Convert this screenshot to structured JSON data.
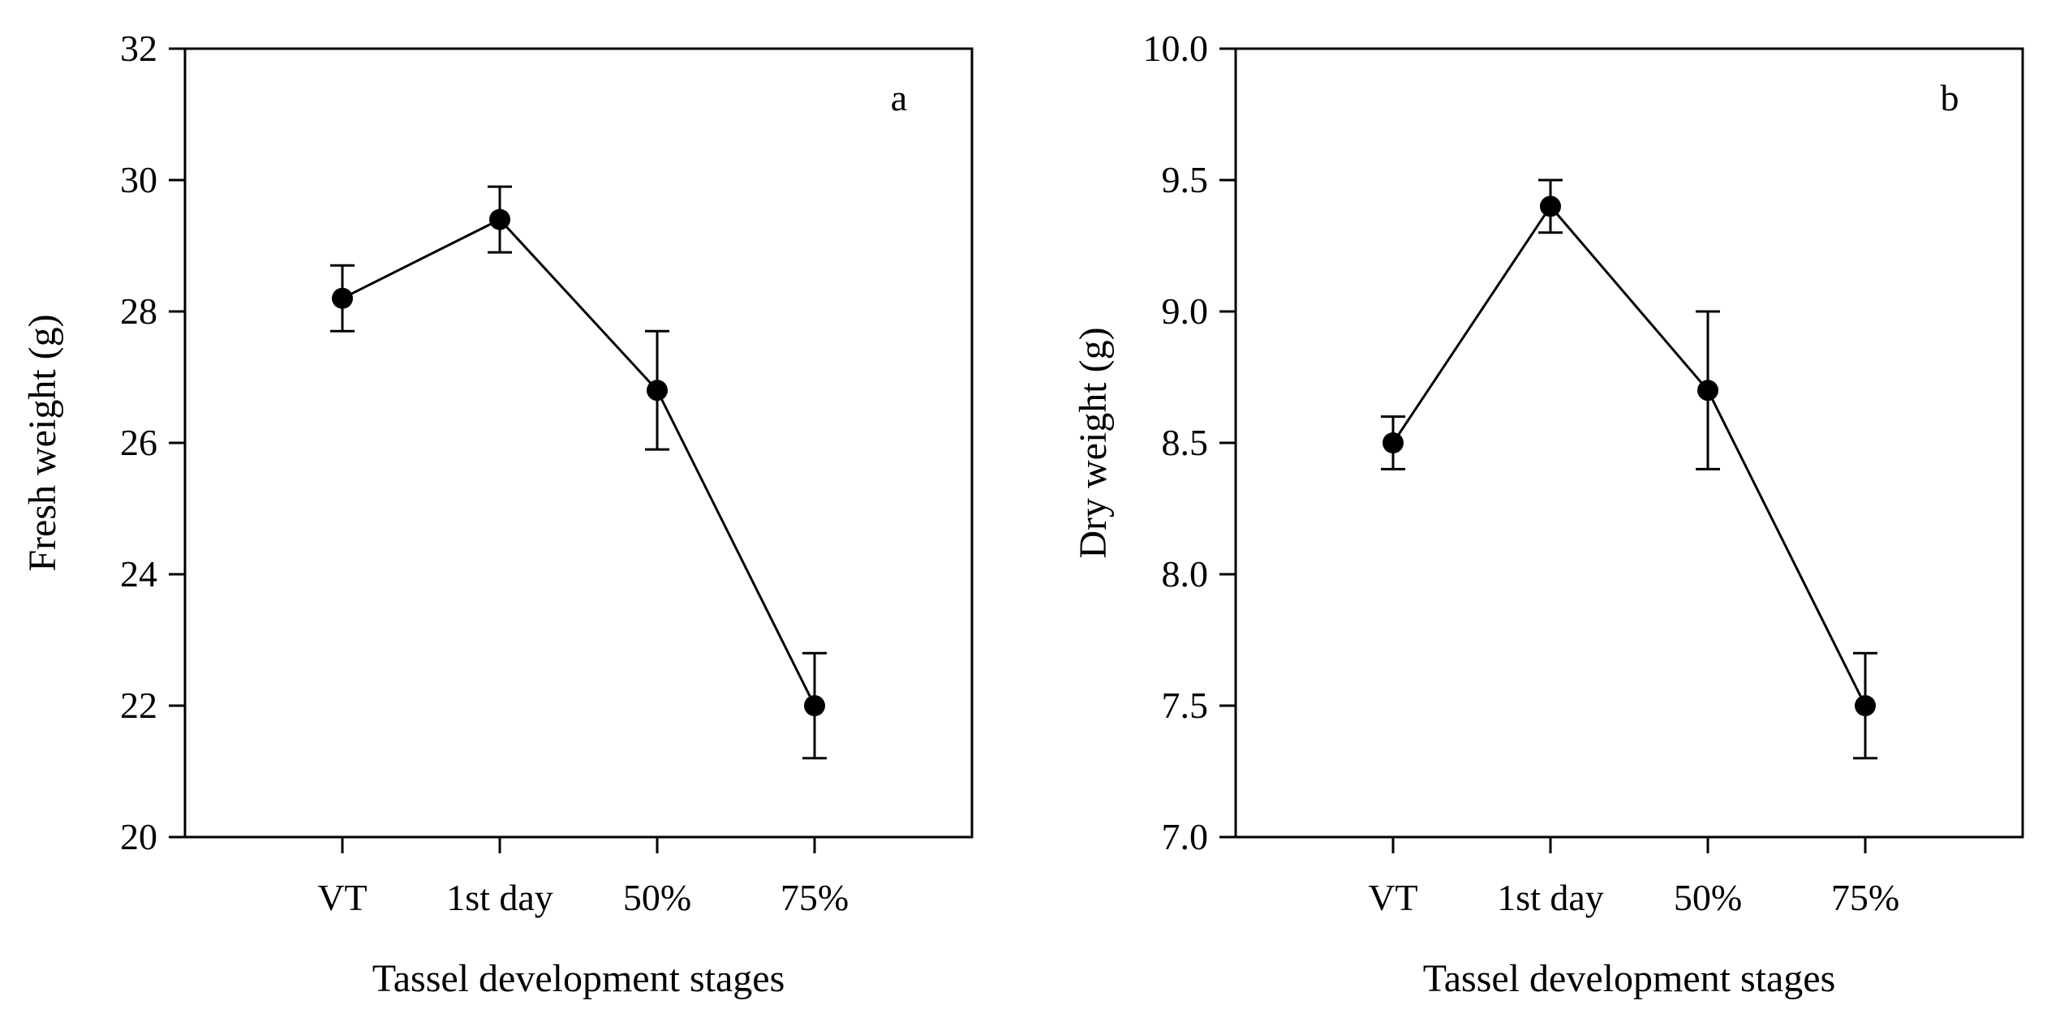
{
  "chart_data": [
    {
      "type": "line",
      "panel_label": "a",
      "title": "",
      "xlabel": "Tassel development stages",
      "ylabel": "Fresh weight (g)",
      "categories": [
        "VT",
        "1st day",
        "50%",
        "75%"
      ],
      "series": [
        {
          "name": "Fresh weight",
          "values": [
            28.2,
            29.4,
            26.8,
            22.0
          ],
          "error": [
            0.5,
            0.5,
            0.9,
            0.8
          ],
          "marker": "filled-circle",
          "color": "#000000"
        }
      ],
      "ylim": [
        20,
        32
      ],
      "yticks": [
        20,
        22,
        24,
        26,
        28,
        30,
        32
      ],
      "ytick_labels": [
        "20",
        "22",
        "24",
        "26",
        "28",
        "30",
        "32"
      ],
      "grid": false
    },
    {
      "type": "line",
      "panel_label": "b",
      "title": "",
      "xlabel": "Tassel development stages",
      "ylabel": "Dry weight (g)",
      "categories": [
        "VT",
        "1st day",
        "50%",
        "75%"
      ],
      "series": [
        {
          "name": "Dry weight",
          "values": [
            8.5,
            9.4,
            8.7,
            7.5
          ],
          "error": [
            0.1,
            0.1,
            0.3,
            0.2
          ],
          "marker": "filled-circle",
          "color": "#000000"
        }
      ],
      "ylim": [
        7.0,
        10.0
      ],
      "yticks": [
        7.0,
        7.5,
        8.0,
        8.5,
        9.0,
        9.5,
        10.0
      ],
      "ytick_labels": [
        "7.0",
        "7.5",
        "8.0",
        "8.5",
        "9.0",
        "9.5",
        "10.0"
      ],
      "grid": false
    }
  ]
}
